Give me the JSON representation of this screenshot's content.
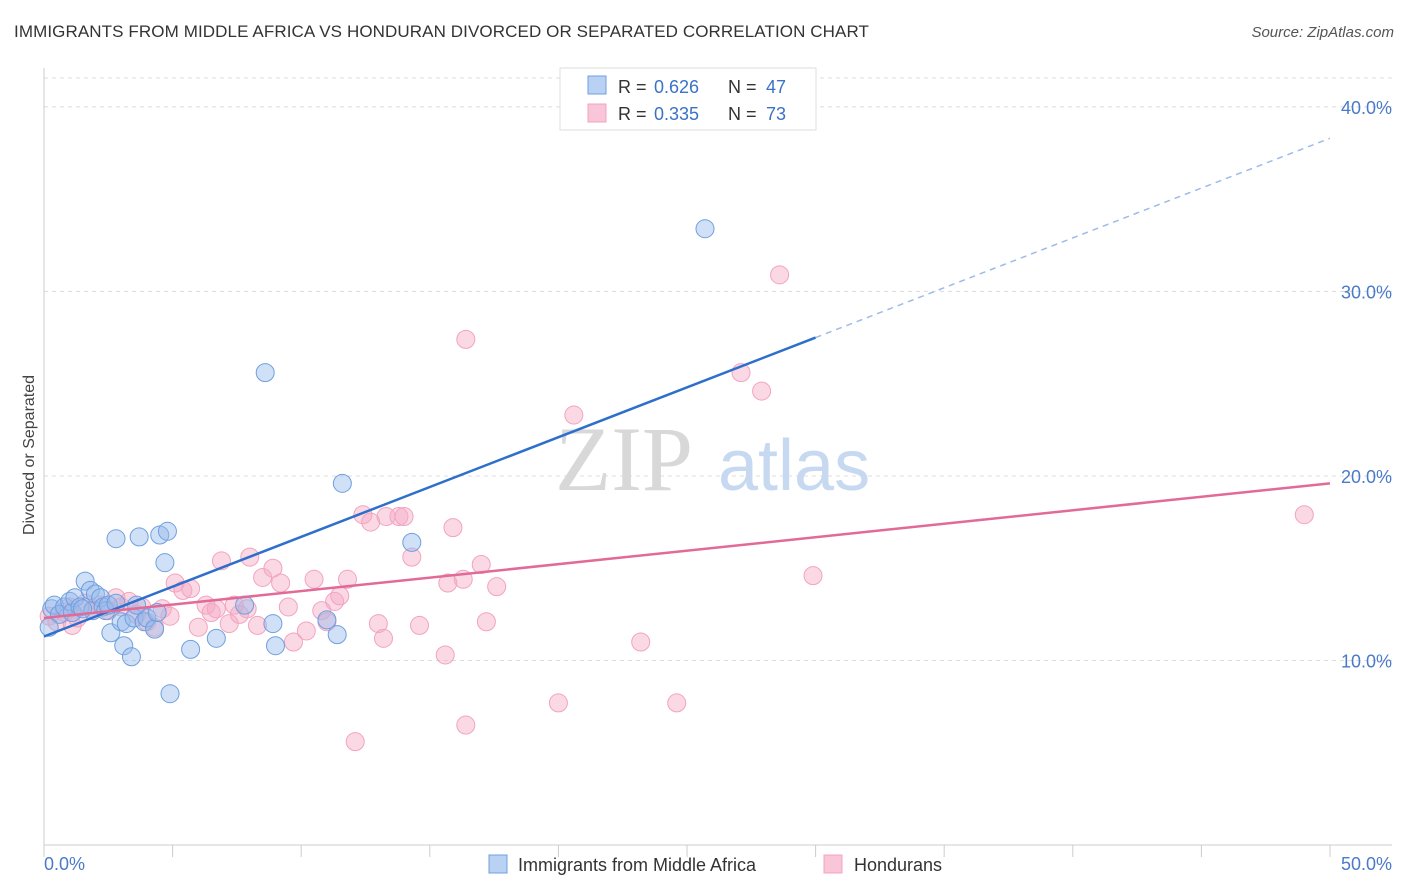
{
  "header": {
    "title": "IMMIGRANTS FROM MIDDLE AFRICA VS HONDURAN DIVORCED OR SEPARATED CORRELATION CHART",
    "source": "Source: ZipAtlas.com"
  },
  "watermark": {
    "zip": "ZIP",
    "atlas": "atlas"
  },
  "legend": {
    "rows": [
      {
        "r_label": "R = ",
        "r_value": "0.626",
        "n_label": "N = ",
        "n_value": "47"
      },
      {
        "r_label": "R = ",
        "r_value": "0.335",
        "n_label": "N = ",
        "n_value": "73"
      }
    ]
  },
  "bottom_legend": [
    "Immigrants from Middle Africa",
    "Hondurans"
  ],
  "chart_data": {
    "type": "scatter",
    "title": "IMMIGRANTS FROM MIDDLE AFRICA VS HONDURAN DIVORCED OR SEPARATED CORRELATION CHART",
    "xlabel": "",
    "ylabel": "Divorced or Separated",
    "xlim": [
      0,
      50
    ],
    "ylim": [
      0,
      42
    ],
    "x_tick_labels": [
      "0.0%",
      "50.0%"
    ],
    "y_ticks": [
      10,
      20,
      30,
      40
    ],
    "y_tick_labels": [
      "10.0%",
      "20.0%",
      "30.0%",
      "40.0%"
    ],
    "grid": true,
    "legend_position": "top-center",
    "series": [
      {
        "name": "Immigrants from Middle Africa",
        "color": "#6f9fe0",
        "line_color": "#2f6fcc",
        "r": 0.626,
        "n": 47,
        "trend": {
          "x0": 0,
          "y0": 11.3,
          "x1": 30,
          "y1": 27.5,
          "dash_to_x": 50,
          "dash_to_y": 38.3
        },
        "points": [
          [
            0.3,
            12.8
          ],
          [
            0.4,
            13.0
          ],
          [
            0.6,
            12.5
          ],
          [
            0.8,
            12.9
          ],
          [
            1.0,
            13.2
          ],
          [
            1.1,
            12.6
          ],
          [
            1.2,
            13.4
          ],
          [
            1.4,
            12.9
          ],
          [
            1.6,
            14.3
          ],
          [
            1.8,
            13.8
          ],
          [
            1.9,
            12.7
          ],
          [
            2.0,
            13.6
          ],
          [
            2.2,
            13.4
          ],
          [
            2.3,
            12.9
          ],
          [
            2.4,
            12.7
          ],
          [
            2.5,
            13.0
          ],
          [
            2.6,
            11.5
          ],
          [
            2.8,
            13.1
          ],
          [
            2.8,
            16.6
          ],
          [
            3.0,
            12.1
          ],
          [
            3.1,
            10.8
          ],
          [
            3.2,
            12.0
          ],
          [
            3.4,
            10.2
          ],
          [
            3.5,
            12.3
          ],
          [
            3.7,
            16.7
          ],
          [
            3.9,
            12.1
          ],
          [
            4.0,
            12.3
          ],
          [
            4.3,
            11.7
          ],
          [
            4.4,
            12.6
          ],
          [
            4.5,
            16.8
          ],
          [
            4.7,
            15.3
          ],
          [
            4.8,
            17.0
          ],
          [
            4.9,
            8.2
          ],
          [
            5.7,
            10.6
          ],
          [
            6.7,
            11.2
          ],
          [
            7.8,
            13.0
          ],
          [
            8.6,
            25.6
          ],
          [
            8.9,
            12.0
          ],
          [
            9.0,
            10.8
          ],
          [
            11.0,
            12.2
          ],
          [
            11.4,
            11.4
          ],
          [
            11.6,
            19.6
          ],
          [
            14.3,
            16.4
          ],
          [
            25.7,
            33.4
          ],
          [
            0.2,
            11.8
          ],
          [
            1.5,
            12.8
          ],
          [
            3.6,
            13.0
          ]
        ]
      },
      {
        "name": "Hondurans",
        "color": "#f3a3bf",
        "line_color": "#e26a97",
        "r": 0.335,
        "n": 73,
        "trend": {
          "x0": 0,
          "y0": 12.3,
          "x1": 50,
          "y1": 19.6
        },
        "points": [
          [
            0.2,
            12.4
          ],
          [
            0.5,
            12.1
          ],
          [
            0.8,
            12.6
          ],
          [
            1.0,
            12.9
          ],
          [
            1.3,
            12.3
          ],
          [
            1.6,
            13.1
          ],
          [
            1.9,
            12.8
          ],
          [
            2.2,
            13.0
          ],
          [
            2.5,
            12.7
          ],
          [
            2.8,
            13.4
          ],
          [
            3.0,
            12.9
          ],
          [
            3.3,
            13.2
          ],
          [
            3.6,
            12.5
          ],
          [
            3.8,
            12.9
          ],
          [
            4.0,
            12.1
          ],
          [
            4.3,
            11.8
          ],
          [
            4.6,
            12.8
          ],
          [
            4.9,
            12.4
          ],
          [
            5.1,
            14.2
          ],
          [
            5.4,
            13.8
          ],
          [
            5.7,
            13.9
          ],
          [
            6.0,
            11.8
          ],
          [
            6.3,
            13.0
          ],
          [
            6.5,
            12.6
          ],
          [
            6.7,
            12.8
          ],
          [
            6.9,
            15.4
          ],
          [
            7.2,
            12.0
          ],
          [
            7.4,
            13.0
          ],
          [
            7.6,
            12.5
          ],
          [
            7.9,
            12.8
          ],
          [
            8.0,
            15.6
          ],
          [
            8.3,
            11.9
          ],
          [
            8.5,
            14.5
          ],
          [
            8.9,
            15.0
          ],
          [
            9.2,
            14.2
          ],
          [
            9.5,
            12.9
          ],
          [
            9.7,
            11.0
          ],
          [
            10.2,
            11.6
          ],
          [
            10.5,
            14.4
          ],
          [
            10.8,
            12.7
          ],
          [
            11.0,
            12.1
          ],
          [
            11.3,
            13.2
          ],
          [
            11.5,
            13.5
          ],
          [
            11.8,
            14.4
          ],
          [
            12.1,
            5.6
          ],
          [
            12.4,
            17.9
          ],
          [
            12.7,
            17.5
          ],
          [
            13.0,
            12.0
          ],
          [
            13.2,
            11.2
          ],
          [
            13.3,
            17.8
          ],
          [
            13.8,
            17.8
          ],
          [
            14.0,
            17.8
          ],
          [
            14.3,
            15.6
          ],
          [
            14.6,
            11.9
          ],
          [
            15.6,
            10.3
          ],
          [
            15.7,
            14.2
          ],
          [
            15.9,
            17.2
          ],
          [
            16.3,
            14.4
          ],
          [
            16.4,
            6.5
          ],
          [
            17.0,
            15.2
          ],
          [
            17.2,
            12.1
          ],
          [
            17.6,
            14.0
          ],
          [
            20.0,
            7.7
          ],
          [
            20.6,
            23.3
          ],
          [
            23.2,
            11.0
          ],
          [
            24.6,
            7.7
          ],
          [
            27.1,
            25.6
          ],
          [
            27.9,
            24.6
          ],
          [
            29.9,
            14.6
          ],
          [
            28.6,
            30.9
          ],
          [
            16.4,
            27.4
          ],
          [
            49.0,
            17.9
          ],
          [
            1.1,
            11.9
          ]
        ]
      }
    ]
  }
}
